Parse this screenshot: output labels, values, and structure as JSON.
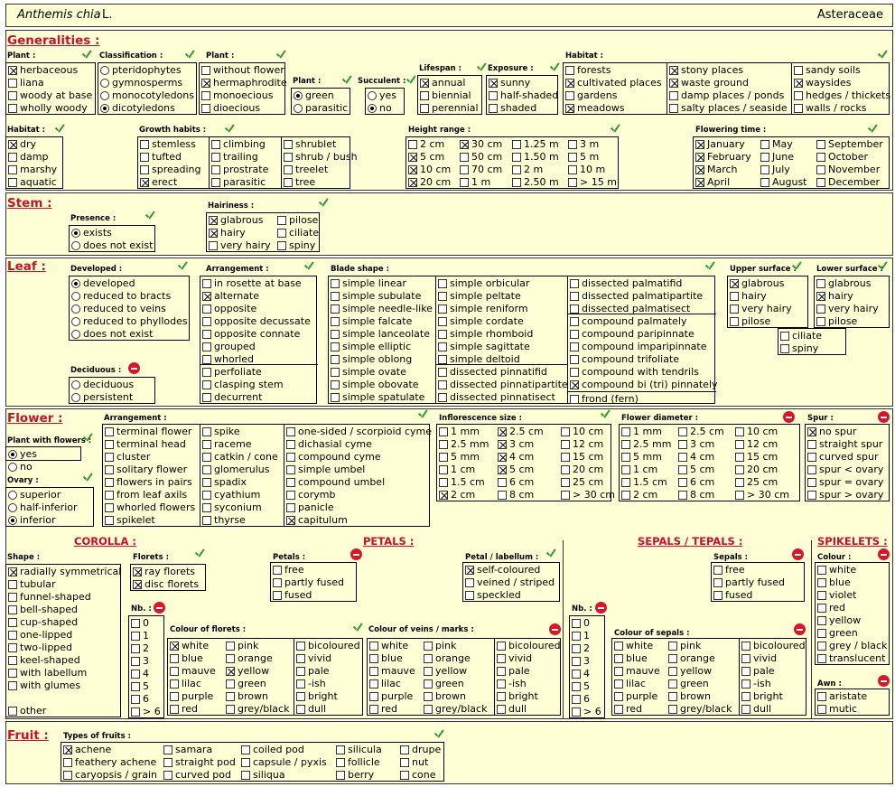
{
  "header": {
    "genus": "Anthemis chia",
    "author": "L.",
    "family": "Asteraceae"
  },
  "sections": {
    "generalities": "Generalities :",
    "stem": "Stem :",
    "leaf": "Leaf :",
    "flower": "Flower :",
    "corolla": "COROLLA :",
    "petals": "PETALS :",
    "sepals": "SEPALS / TEPALS :",
    "spikelets": "SPIKELETS :",
    "fruit": "Fruit :"
  },
  "labels": {
    "plant": "Plant :",
    "classification": "Classification :",
    "plant2": "Plant :",
    "plant3": "Plant :",
    "succulent": "Succulent :",
    "lifespan": "Lifespan :",
    "exposure": "Exposure :",
    "habitat": "Habitat :",
    "habitat2": "Habitat :",
    "growth": "Growth habits :",
    "height": "Height range :",
    "flowering": "Flowering time :",
    "presence": "Presence :",
    "hairiness": "Hairiness :",
    "developed": "Developed :",
    "arrangement": "Arrangement :",
    "blade": "Blade shape :",
    "upper": "Upper surface :",
    "lower": "Lower surface :",
    "deciduous": "Deciduous :",
    "plant_flowers": "Plant with flowers :",
    "ovary": "Ovary :",
    "farrangement": "Arrangement :",
    "infl": "Inflorescence size :",
    "fdiam": "Flower diameter :",
    "spur": "Spur :",
    "shape": "Shape :",
    "florets": "Florets :",
    "petals": "Petals :",
    "petal_lab": "Petal / labellum :",
    "sepals": "Sepals :",
    "colour": "Colour :",
    "nb": "Nb. :",
    "nb2": "Nb. :",
    "col_florets": "Colour of florets :",
    "col_veins": "Colour of veins / marks :",
    "col_sepals": "Colour of sepals :",
    "awn": "Awn :",
    "fruit_types": "Types of fruits :"
  },
  "groups": {
    "plant": [
      [
        "herbaceous",
        "x"
      ],
      [
        "liana",
        ""
      ],
      [
        "woody at base",
        ""
      ],
      [
        "wholly woody",
        ""
      ]
    ],
    "classification": [
      [
        "pteridophytes",
        ""
      ],
      [
        "gymnosperms",
        ""
      ],
      [
        "monocotyledons",
        ""
      ],
      [
        "dicotyledons",
        "on"
      ]
    ],
    "plant2": [
      [
        "without flower",
        ""
      ],
      [
        "hermaphrodite",
        "x"
      ],
      [
        "monoecious",
        ""
      ],
      [
        "dioecious",
        ""
      ]
    ],
    "plant3": [
      [
        "green",
        "on"
      ],
      [
        "parasitic",
        ""
      ]
    ],
    "succulent": [
      [
        "yes",
        ""
      ],
      [
        "no",
        "on"
      ]
    ],
    "lifespan": [
      [
        "annual",
        "x"
      ],
      [
        "biennial",
        ""
      ],
      [
        "perennial",
        ""
      ]
    ],
    "exposure": [
      [
        "sunny",
        "x"
      ],
      [
        "half-shaded",
        ""
      ],
      [
        "shaded",
        ""
      ]
    ],
    "habitat_a": [
      [
        "forests",
        ""
      ],
      [
        "cultivated places",
        "x"
      ],
      [
        "gardens",
        ""
      ],
      [
        "meadows",
        "x"
      ]
    ],
    "habitat_b": [
      [
        "stony places",
        "x"
      ],
      [
        "waste ground",
        "x"
      ],
      [
        "damp places / ponds",
        ""
      ],
      [
        "salty places / seaside",
        ""
      ]
    ],
    "habitat_c": [
      [
        "sandy soils",
        ""
      ],
      [
        "waysides",
        "x"
      ],
      [
        "hedges / thickets",
        ""
      ],
      [
        "walls / rocks",
        ""
      ]
    ],
    "habitat2": [
      [
        "dry",
        "x"
      ],
      [
        "damp",
        ""
      ],
      [
        "marshy",
        ""
      ],
      [
        "aquatic",
        ""
      ]
    ],
    "growth_a": [
      [
        "stemless",
        ""
      ],
      [
        "tufted",
        ""
      ],
      [
        "spreading",
        ""
      ],
      [
        "erect",
        "x"
      ]
    ],
    "growth_b": [
      [
        "climbing",
        ""
      ],
      [
        "trailing",
        ""
      ],
      [
        "prostrate",
        ""
      ],
      [
        "parasitic",
        ""
      ]
    ],
    "growth_c": [
      [
        "shrublet",
        ""
      ],
      [
        "shrub / bush",
        ""
      ],
      [
        "treelet",
        ""
      ],
      [
        "tree",
        ""
      ]
    ],
    "height_a": [
      [
        "2 cm",
        ""
      ],
      [
        "5 cm",
        "x"
      ],
      [
        "10 cm",
        "x"
      ],
      [
        "20 cm",
        "x"
      ]
    ],
    "height_b": [
      [
        "30 cm",
        "x"
      ],
      [
        "50 cm",
        ""
      ],
      [
        "70 cm",
        ""
      ],
      [
        "1 m",
        ""
      ]
    ],
    "height_c": [
      [
        "1.25 m",
        ""
      ],
      [
        "1.50 m",
        ""
      ],
      [
        "2 m",
        ""
      ],
      [
        "2.50 m",
        ""
      ]
    ],
    "height_d": [
      [
        "3 m",
        ""
      ],
      [
        "5 m",
        ""
      ],
      [
        "10 m",
        ""
      ],
      [
        "> 15 m",
        ""
      ]
    ],
    "flowering_a": [
      [
        "January",
        "x"
      ],
      [
        "February",
        "x"
      ],
      [
        "March",
        "x"
      ],
      [
        "April",
        "x"
      ]
    ],
    "flowering_b": [
      [
        "May",
        ""
      ],
      [
        "June",
        ""
      ],
      [
        "July",
        ""
      ],
      [
        "August",
        ""
      ]
    ],
    "flowering_c": [
      [
        "September",
        ""
      ],
      [
        "October",
        ""
      ],
      [
        "November",
        ""
      ],
      [
        "December",
        ""
      ]
    ],
    "presence": [
      [
        "exists",
        "on"
      ],
      [
        "does not exist",
        ""
      ]
    ],
    "hair_a": [
      [
        "glabrous",
        "x"
      ],
      [
        "hairy",
        "x"
      ],
      [
        "very hairy",
        ""
      ]
    ],
    "hair_b": [
      [
        "pilose",
        ""
      ],
      [
        "ciliate",
        ""
      ],
      [
        "spiny",
        ""
      ]
    ],
    "developed": [
      [
        "developed",
        "on"
      ],
      [
        "reduced to bracts",
        ""
      ],
      [
        "reduced to veins",
        ""
      ],
      [
        "reduced to phyllodes",
        ""
      ],
      [
        "does not exist",
        ""
      ]
    ],
    "deciduous": [
      [
        "deciduous",
        ""
      ],
      [
        "persistent",
        ""
      ]
    ],
    "arr_a": [
      [
        "in rosette at base",
        ""
      ],
      [
        "alternate",
        "x"
      ],
      [
        "opposite",
        ""
      ],
      [
        "opposite decussate",
        ""
      ],
      [
        "opposite connate",
        ""
      ],
      [
        "grouped",
        ""
      ],
      [
        "whorled",
        ""
      ]
    ],
    "arr_b": [
      [
        "perfoliate",
        ""
      ],
      [
        "clasping stem",
        ""
      ],
      [
        "decurrent",
        ""
      ]
    ],
    "blade_a": [
      [
        "simple linear",
        ""
      ],
      [
        "simple subulate",
        ""
      ],
      [
        "simple needle-like",
        ""
      ],
      [
        "simple falcate",
        ""
      ],
      [
        "simple lanceolate",
        ""
      ],
      [
        "simple elliptic",
        ""
      ],
      [
        "simple oblong",
        ""
      ],
      [
        "simple ovate",
        ""
      ],
      [
        "simple obovate",
        ""
      ],
      [
        "simple spatulate",
        ""
      ]
    ],
    "blade_b": [
      [
        "simple orbicular",
        ""
      ],
      [
        "simple peltate",
        ""
      ],
      [
        "simple reniform",
        ""
      ],
      [
        "simple cordate",
        ""
      ],
      [
        "simple rhomboid",
        ""
      ],
      [
        "simple sagittate",
        ""
      ],
      [
        "simple deltoid",
        ""
      ]
    ],
    "blade_b2": [
      [
        "dissected pinnatifid",
        ""
      ],
      [
        "dissected pinnatipartite",
        ""
      ],
      [
        "dissected pinnatisect",
        ""
      ]
    ],
    "blade_c": [
      [
        "dissected palmatifid",
        ""
      ],
      [
        "dissected palmatipartite",
        ""
      ],
      [
        "dissected palmatisect",
        ""
      ]
    ],
    "blade_c2": [
      [
        "compound palmately",
        ""
      ],
      [
        "compound paripinnate",
        ""
      ],
      [
        "compound imparipinnate",
        ""
      ],
      [
        "compound trifoliate",
        ""
      ],
      [
        "compound with tendrils",
        ""
      ],
      [
        "compound bi (tri) pinnately",
        "x"
      ]
    ],
    "blade_c3": [
      [
        "frond  (fern)",
        ""
      ]
    ],
    "upper": [
      [
        "glabrous",
        "x"
      ],
      [
        "hairy",
        ""
      ],
      [
        "very hairy",
        ""
      ],
      [
        "pilose",
        ""
      ]
    ],
    "lower": [
      [
        "glabrous",
        ""
      ],
      [
        "hairy",
        "x"
      ],
      [
        "very hairy",
        ""
      ],
      [
        "pilose",
        ""
      ]
    ],
    "surface_extra": [
      [
        "ciliate",
        ""
      ],
      [
        "spiny",
        ""
      ]
    ],
    "plant_flowers": [
      [
        "yes",
        "on"
      ],
      [
        "no",
        ""
      ]
    ],
    "ovary": [
      [
        "superior",
        ""
      ],
      [
        "half-inferior",
        ""
      ],
      [
        "inferior",
        "on"
      ]
    ],
    "farr_a": [
      [
        "terminal flower",
        ""
      ],
      [
        "terminal head",
        ""
      ],
      [
        "cluster",
        ""
      ],
      [
        "solitary flower",
        ""
      ],
      [
        "flowers in pairs",
        ""
      ],
      [
        "from leaf axils",
        ""
      ],
      [
        "whorled flowers",
        ""
      ],
      [
        "spikelet",
        ""
      ]
    ],
    "farr_b": [
      [
        "spike",
        ""
      ],
      [
        "raceme",
        ""
      ],
      [
        "catkin / cone",
        ""
      ],
      [
        "glomerulus",
        ""
      ],
      [
        "spadix",
        ""
      ],
      [
        "cyathium",
        ""
      ],
      [
        "syconium",
        ""
      ],
      [
        "thyrse",
        ""
      ]
    ],
    "farr_c": [
      [
        "one-sided / scorpioid cyme",
        ""
      ],
      [
        "dichasial cyme",
        ""
      ],
      [
        "compound cyme",
        ""
      ],
      [
        "simple umbel",
        ""
      ],
      [
        "compound umbel",
        ""
      ],
      [
        "corymb",
        ""
      ],
      [
        "panicle",
        ""
      ],
      [
        "capitulum",
        "x"
      ]
    ],
    "infl_a": [
      [
        "1 mm",
        ""
      ],
      [
        "2.5 mm",
        ""
      ],
      [
        "5 mm",
        ""
      ],
      [
        "1 cm",
        ""
      ],
      [
        "1.5 cm",
        ""
      ],
      [
        "2 cm",
        "x"
      ]
    ],
    "infl_b": [
      [
        "2.5 cm",
        "x"
      ],
      [
        "3 cm",
        "x"
      ],
      [
        "4 cm",
        "x"
      ],
      [
        "5 cm",
        "x"
      ],
      [
        "6 cm",
        ""
      ],
      [
        "8 cm",
        ""
      ]
    ],
    "infl_c": [
      [
        "10 cm",
        ""
      ],
      [
        "12 cm",
        ""
      ],
      [
        "15 cm",
        ""
      ],
      [
        "20 cm",
        ""
      ],
      [
        "25 cm",
        ""
      ],
      [
        "> 30 cm",
        ""
      ]
    ],
    "fd_a": [
      [
        "1 mm",
        ""
      ],
      [
        "2.5 mm",
        ""
      ],
      [
        "5 mm",
        ""
      ],
      [
        "1 cm",
        ""
      ],
      [
        "1.5 cm",
        ""
      ],
      [
        "2 cm",
        ""
      ]
    ],
    "fd_b": [
      [
        "2.5 cm",
        ""
      ],
      [
        "3 cm",
        ""
      ],
      [
        "4 cm",
        ""
      ],
      [
        "5 cm",
        ""
      ],
      [
        "6 cm",
        ""
      ],
      [
        "8 cm",
        ""
      ]
    ],
    "fd_c": [
      [
        "10 cm",
        ""
      ],
      [
        "12 cm",
        ""
      ],
      [
        "15 cm",
        ""
      ],
      [
        "20 cm",
        ""
      ],
      [
        "25 cm",
        ""
      ],
      [
        "> 30 cm",
        ""
      ]
    ],
    "spur": [
      [
        "no spur",
        "x"
      ],
      [
        "straight spur",
        ""
      ],
      [
        "curved spur",
        ""
      ],
      [
        "spur < ovary",
        ""
      ],
      [
        "spur = ovary",
        ""
      ],
      [
        "spur > ovary",
        ""
      ]
    ],
    "shape": [
      [
        "radially symmetrical",
        "x"
      ],
      [
        "tubular",
        ""
      ],
      [
        "funnel-shaped",
        ""
      ],
      [
        "bell-shaped",
        ""
      ],
      [
        "cup-shaped",
        ""
      ],
      [
        "one-lipped",
        ""
      ],
      [
        "two-lipped",
        ""
      ],
      [
        "keel-shaped",
        ""
      ],
      [
        "with labellum",
        ""
      ],
      [
        "with glumes",
        ""
      ]
    ],
    "shape_other": [
      [
        "other",
        ""
      ]
    ],
    "florets": [
      [
        "ray florets",
        "x"
      ],
      [
        "disc florets",
        "x"
      ]
    ],
    "nb": [
      [
        "0",
        ""
      ],
      [
        "1",
        ""
      ],
      [
        "2",
        ""
      ],
      [
        "3",
        ""
      ],
      [
        "4",
        ""
      ],
      [
        "5",
        ""
      ],
      [
        "6",
        ""
      ],
      [
        "> 6",
        ""
      ]
    ],
    "nb2": [
      [
        "0",
        ""
      ],
      [
        "1",
        ""
      ],
      [
        "2",
        ""
      ],
      [
        "3",
        ""
      ],
      [
        "4",
        ""
      ],
      [
        "5",
        ""
      ],
      [
        "6",
        ""
      ],
      [
        "> 6",
        ""
      ]
    ],
    "cf_a": [
      [
        "white",
        "x"
      ],
      [
        "blue",
        ""
      ],
      [
        "mauve",
        ""
      ],
      [
        "lilac",
        ""
      ],
      [
        "purple",
        ""
      ],
      [
        "red",
        ""
      ]
    ],
    "cf_b": [
      [
        "pink",
        ""
      ],
      [
        "orange",
        ""
      ],
      [
        "yellow",
        "x"
      ],
      [
        "green",
        ""
      ],
      [
        "brown",
        ""
      ],
      [
        "grey/black",
        ""
      ]
    ],
    "cf_c": [
      [
        "bicoloured",
        ""
      ],
      [
        "vivid",
        ""
      ],
      [
        "pale",
        ""
      ],
      [
        "-ish",
        ""
      ],
      [
        "bright",
        ""
      ],
      [
        "dull",
        ""
      ]
    ],
    "petals": [
      [
        "free",
        ""
      ],
      [
        "partly fused",
        ""
      ],
      [
        "fused",
        ""
      ]
    ],
    "petal_lab": [
      [
        "self-coloured",
        "x"
      ],
      [
        "veined / striped",
        ""
      ],
      [
        "speckled",
        ""
      ]
    ],
    "cv_a": [
      [
        "white",
        ""
      ],
      [
        "blue",
        ""
      ],
      [
        "mauve",
        ""
      ],
      [
        "lilac",
        ""
      ],
      [
        "purple",
        ""
      ],
      [
        "red",
        ""
      ]
    ],
    "cv_b": [
      [
        "pink",
        ""
      ],
      [
        "orange",
        ""
      ],
      [
        "yellow",
        ""
      ],
      [
        "green",
        ""
      ],
      [
        "brown",
        ""
      ],
      [
        "grey/black",
        ""
      ]
    ],
    "cv_c": [
      [
        "bicoloured",
        ""
      ],
      [
        "vivid",
        ""
      ],
      [
        "pale",
        ""
      ],
      [
        "-ish",
        ""
      ],
      [
        "bright",
        ""
      ],
      [
        "dull",
        ""
      ]
    ],
    "sepals": [
      [
        "free",
        ""
      ],
      [
        "partly fused",
        ""
      ],
      [
        "fused",
        ""
      ]
    ],
    "cs_a": [
      [
        "white",
        ""
      ],
      [
        "blue",
        ""
      ],
      [
        "mauve",
        ""
      ],
      [
        "lilac",
        ""
      ],
      [
        "purple",
        ""
      ],
      [
        "red",
        ""
      ]
    ],
    "cs_b": [
      [
        "pink",
        ""
      ],
      [
        "orange",
        ""
      ],
      [
        "yellow",
        ""
      ],
      [
        "green",
        ""
      ],
      [
        "brown",
        ""
      ],
      [
        "grey/black",
        ""
      ]
    ],
    "cs_c": [
      [
        "bicoloured",
        ""
      ],
      [
        "vivid",
        ""
      ],
      [
        "pale",
        ""
      ],
      [
        "-ish",
        ""
      ],
      [
        "bright",
        ""
      ],
      [
        "dull",
        ""
      ]
    ],
    "sp_colour": [
      [
        "white",
        ""
      ],
      [
        "blue",
        ""
      ],
      [
        "violet",
        ""
      ],
      [
        "red",
        ""
      ],
      [
        "yellow",
        ""
      ],
      [
        "green",
        ""
      ],
      [
        "grey / black",
        ""
      ],
      [
        "translucent",
        ""
      ]
    ],
    "awn": [
      [
        "aristate",
        ""
      ],
      [
        "mutic",
        ""
      ]
    ],
    "fruit_a": [
      [
        "achene",
        "x"
      ],
      [
        "feathery achene",
        ""
      ],
      [
        "caryopsis / grain",
        ""
      ]
    ],
    "fruit_b": [
      [
        "samara",
        ""
      ],
      [
        "straight pod",
        ""
      ],
      [
        "curved pod",
        ""
      ]
    ],
    "fruit_c": [
      [
        "coiled pod",
        ""
      ],
      [
        "capsule / pyxis",
        ""
      ],
      [
        "siliqua",
        ""
      ]
    ],
    "fruit_d": [
      [
        "silicula",
        ""
      ],
      [
        "follicle",
        ""
      ],
      [
        "berry",
        ""
      ]
    ],
    "fruit_e": [
      [
        "drupe",
        ""
      ],
      [
        "nut",
        ""
      ],
      [
        "cone",
        ""
      ]
    ]
  },
  "icons": {
    "check": "check-icon",
    "stop": "stop-icon"
  },
  "colors": {
    "background": "#ffffd6",
    "section": "#c8102e",
    "check": "#2e9a2e",
    "stop": "#d8152a"
  }
}
